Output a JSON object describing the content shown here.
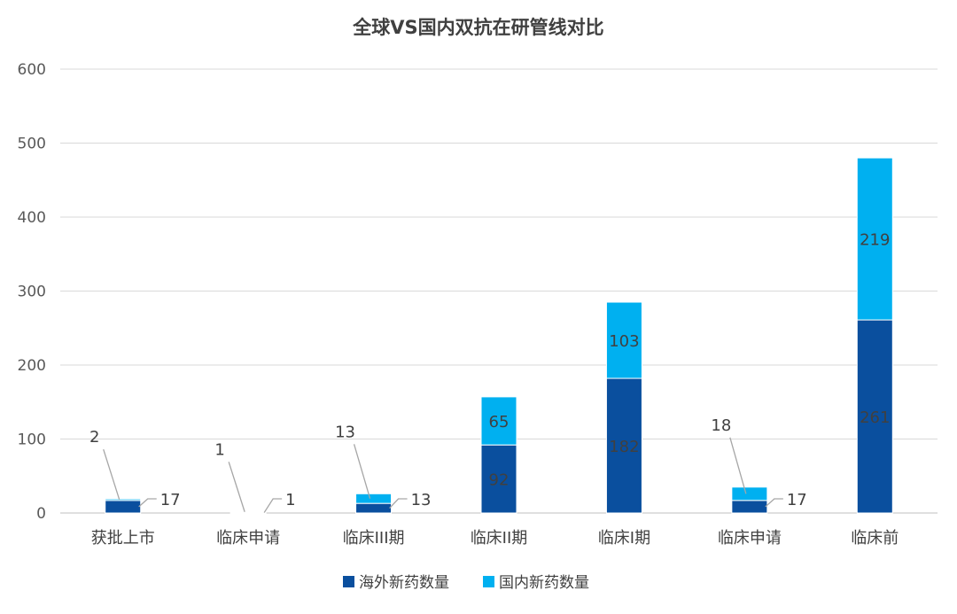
{
  "chart_data": {
    "type": "bar",
    "stacked": true,
    "title": "全球VS国内双抗在研管线对比",
    "categories": [
      "获批上市",
      "临床申请",
      "临床III期",
      "临床II期",
      "临床I期",
      "临床申请",
      "临床前"
    ],
    "series": [
      {
        "name": "海外新药数量",
        "color": "#0a4f9e",
        "values": [
          17,
          1,
          13,
          92,
          182,
          17,
          261
        ]
      },
      {
        "name": "国内新药数量",
        "color": "#00b0f0",
        "values": [
          2,
          1,
          13,
          65,
          103,
          18,
          219
        ]
      }
    ],
    "ylim": [
      0,
      600
    ],
    "yticks": [
      0,
      100,
      200,
      300,
      400,
      500,
      600
    ],
    "grid": true,
    "legend_position": "bottom"
  }
}
